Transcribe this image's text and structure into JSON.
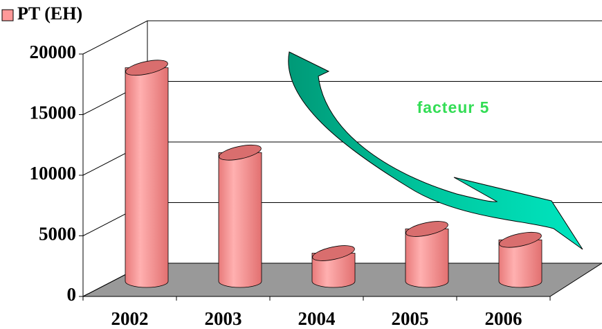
{
  "chart_data": {
    "type": "bar",
    "categories": [
      "2002",
      "2003",
      "2004",
      "2005",
      "2006"
    ],
    "series": [
      {
        "name": "PT (EH)",
        "color": "#ff9999",
        "values": [
          17500,
          10500,
          2200,
          4200,
          3300
        ]
      }
    ],
    "ylim": [
      0,
      20000
    ],
    "yticks": [
      0,
      5000,
      10000,
      15000,
      20000
    ],
    "grid": true,
    "annotation": "facteur 5",
    "legend": "top-left"
  }
}
